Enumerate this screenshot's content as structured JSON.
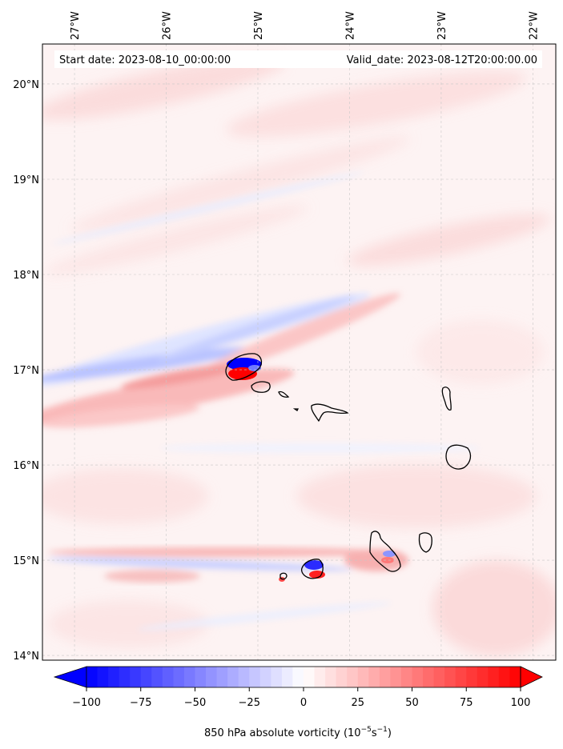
{
  "header": {
    "start_date": "Start date: 2023-08-10_00:00:00",
    "valid_date": "Valid_date: 2023-08-12T20:00:00.00"
  },
  "map": {
    "lon_range": [
      -27.35,
      -21.75
    ],
    "lat_range": [
      13.95,
      20.42
    ],
    "lon_ticks": [
      {
        "value": -27,
        "label": "27°W"
      },
      {
        "value": -26,
        "label": "26°W"
      },
      {
        "value": -25,
        "label": "25°W"
      },
      {
        "value": -24,
        "label": "24°W"
      },
      {
        "value": -23,
        "label": "23°W"
      },
      {
        "value": -22,
        "label": "22°W"
      }
    ],
    "lat_ticks": [
      {
        "value": 20,
        "label": "20°N"
      },
      {
        "value": 19,
        "label": "19°N"
      },
      {
        "value": 18,
        "label": "18°N"
      },
      {
        "value": 17,
        "label": "17°N"
      },
      {
        "value": 16,
        "label": "16°N"
      },
      {
        "value": 15,
        "label": "15°N"
      },
      {
        "value": 14,
        "label": "14°N"
      }
    ],
    "gridlines": true
  },
  "colorbar": {
    "colormap": "bwr",
    "range": [
      -100,
      100
    ],
    "extend": "both",
    "ticks": [
      "−100",
      "−75",
      "−50",
      "−25",
      "0",
      "25",
      "50",
      "75",
      "100"
    ],
    "label_text": "850 hPa absolute vorticity (10",
    "label_exp1": "−5",
    "label_mid": "s",
    "label_exp2": "−1",
    "label_close": ")"
  },
  "colors": {
    "positive": "#ff0000",
    "negative": "#0000ff",
    "neutral": "#ffffff"
  }
}
